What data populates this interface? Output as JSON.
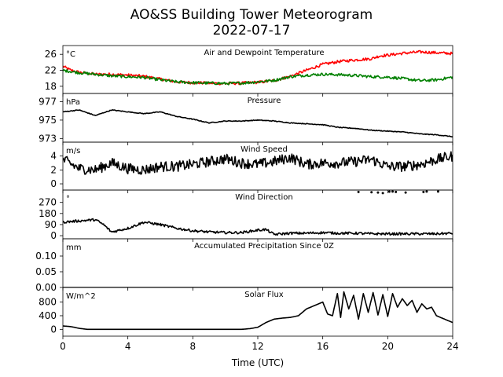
{
  "figure": {
    "title_line1": "AO&SS Building Tower Meteorogram",
    "title_line2": "2022-07-17",
    "xlabel": "Time (UTC)",
    "x_ticks": [
      0,
      4,
      8,
      12,
      16,
      20,
      24
    ],
    "x_range": [
      0,
      24
    ]
  },
  "chart_data": [
    {
      "id": "temperature",
      "type": "line",
      "title": "Air and Dewpoint Temperature",
      "unit": "°C",
      "ylim": [
        16.2,
        28.2
      ],
      "y_ticks": [
        18,
        22,
        26
      ],
      "series": [
        {
          "name": "",
          "color": "#ff0000",
          "noise": 0.35,
          "x": [
            0,
            0.5,
            1,
            2,
            3,
            4,
            5,
            6,
            7,
            8,
            9,
            10,
            11,
            12,
            13,
            14,
            15,
            16,
            17,
            18,
            19,
            19.5,
            20,
            21,
            22,
            23,
            24
          ],
          "y": [
            23.0,
            22.0,
            21.5,
            21.0,
            21.0,
            20.8,
            20.5,
            19.8,
            19.1,
            18.9,
            18.8,
            18.7,
            18.8,
            19.0,
            19.4,
            20.5,
            22.0,
            23.5,
            24.2,
            24.6,
            24.9,
            25.6,
            25.8,
            26.3,
            26.6,
            26.4,
            26.2
          ]
        },
        {
          "name": "",
          "color": "#008000",
          "noise": 0.35,
          "x": [
            0,
            1,
            2,
            3,
            4,
            5,
            6,
            7,
            8,
            9,
            10,
            11,
            12,
            13,
            14,
            15,
            16,
            17,
            18,
            19,
            20,
            21,
            22,
            23,
            24
          ],
          "y": [
            22.0,
            21.4,
            21.0,
            20.6,
            20.4,
            20.2,
            19.6,
            19.1,
            18.9,
            18.8,
            18.7,
            18.8,
            19.1,
            19.5,
            20.4,
            20.8,
            21.0,
            20.9,
            20.7,
            20.4,
            20.3,
            19.9,
            19.4,
            19.6,
            20.3
          ]
        }
      ]
    },
    {
      "id": "pressure",
      "type": "line",
      "title": "Pressure",
      "unit": "hPa",
      "ylim": [
        972.6,
        977.9
      ],
      "y_ticks": [
        973,
        975,
        977
      ],
      "series": [
        {
          "name": "",
          "color": "#000000",
          "noise": 0.04,
          "x": [
            0,
            1,
            2,
            3,
            4,
            5,
            6,
            7,
            8,
            9,
            10,
            11,
            12,
            13,
            14,
            15,
            16,
            17,
            18,
            19,
            20,
            21,
            22,
            23,
            24
          ],
          "y": [
            975.9,
            976.1,
            975.5,
            976.1,
            975.9,
            975.7,
            975.9,
            975.4,
            975.1,
            974.7,
            974.9,
            974.9,
            975.0,
            974.9,
            974.7,
            974.6,
            974.5,
            974.2,
            974.1,
            973.9,
            973.8,
            973.7,
            973.5,
            973.4,
            973.2
          ]
        }
      ]
    },
    {
      "id": "wind_speed",
      "type": "line",
      "title": "Wind Speed",
      "unit": "m/s",
      "ylim": [
        -0.9,
        6.0
      ],
      "y_ticks": [
        0,
        2,
        4
      ],
      "series": [
        {
          "name": "",
          "color": "#000000",
          "noise": 0.75,
          "x": [
            0,
            1,
            2,
            3,
            4,
            5,
            6,
            7,
            8,
            9,
            10,
            11,
            12,
            13,
            14,
            15,
            16,
            17,
            18,
            19,
            20,
            21,
            22,
            23,
            24
          ],
          "y": [
            3.5,
            2.2,
            2.0,
            3.0,
            2.2,
            2.0,
            2.5,
            2.5,
            2.8,
            3.2,
            3.6,
            3.0,
            2.8,
            3.2,
            3.8,
            2.8,
            3.0,
            3.0,
            3.2,
            3.5,
            2.5,
            2.5,
            2.8,
            3.5,
            4.0
          ]
        }
      ]
    },
    {
      "id": "wind_direction",
      "type": "line",
      "title": "Wind Direction",
      "unit": "°",
      "ylim": [
        -25,
        370
      ],
      "y_ticks": [
        0,
        90,
        180,
        270
      ],
      "series": [
        {
          "name": "",
          "color": "#000000",
          "noise": 10,
          "x": [
            0,
            1,
            2,
            2.5,
            3,
            4,
            5,
            6,
            7,
            8,
            9,
            10,
            11,
            12,
            12.5,
            13,
            14,
            15,
            16,
            17,
            18,
            19,
            20,
            21,
            22,
            23,
            24
          ],
          "y": [
            110,
            120,
            130,
            90,
            30,
            60,
            110,
            90,
            60,
            40,
            30,
            25,
            25,
            45,
            50,
            10,
            20,
            20,
            25,
            20,
            20,
            15,
            15,
            15,
            15,
            15,
            20
          ]
        },
        {
          "name": "",
          "color": "#000000",
          "style": "dots",
          "x": [
            18.2,
            19.0,
            19.4,
            19.7,
            20.1,
            20.3,
            20.5,
            21.1,
            22.2,
            22.4,
            23.1
          ],
          "y": [
            355,
            352,
            350,
            345,
            357,
            358,
            355,
            350,
            355,
            358,
            358
          ]
        }
      ]
    },
    {
      "id": "precipitation",
      "type": "line",
      "title": "Accumulated Precipitation Since 0Z",
      "unit": "mm",
      "ylim": [
        0,
        0.155
      ],
      "y_ticks": [
        0.0,
        0.05,
        0.1
      ],
      "y_tick_labels": [
        "0.00",
        "0.05",
        "0.10"
      ],
      "series": [
        {
          "name": "",
          "color": "#000000",
          "noise": 0,
          "x": [
            0,
            24
          ],
          "y": [
            0.0,
            0.0
          ]
        }
      ]
    },
    {
      "id": "solar_flux",
      "type": "line",
      "title": "Solar Flux",
      "unit": "W/m^2",
      "ylim": [
        -200,
        1230
      ],
      "y_ticks": [
        0,
        400,
        800
      ],
      "series": [
        {
          "name": "",
          "color": "#000000",
          "noise": 0,
          "x": [
            0,
            0.5,
            1,
            1.5,
            2,
            4,
            8,
            11,
            11.5,
            12,
            12.5,
            13,
            13.5,
            14,
            14.5,
            15,
            15.5,
            16,
            16.3,
            16.6,
            16.9,
            17.1,
            17.3,
            17.6,
            17.9,
            18.2,
            18.5,
            18.8,
            19.1,
            19.4,
            19.7,
            20.0,
            20.3,
            20.6,
            20.9,
            21.2,
            21.5,
            21.8,
            22.1,
            22.4,
            22.7,
            23.0,
            23.5,
            24
          ],
          "y": [
            100,
            80,
            30,
            0,
            0,
            0,
            0,
            0,
            20,
            60,
            200,
            300,
            330,
            350,
            400,
            600,
            700,
            800,
            450,
            400,
            1050,
            350,
            1100,
            600,
            1000,
            300,
            1050,
            500,
            1080,
            420,
            1020,
            380,
            1050,
            650,
            900,
            700,
            850,
            500,
            750,
            600,
            650,
            400,
            300,
            200
          ]
        }
      ]
    }
  ]
}
